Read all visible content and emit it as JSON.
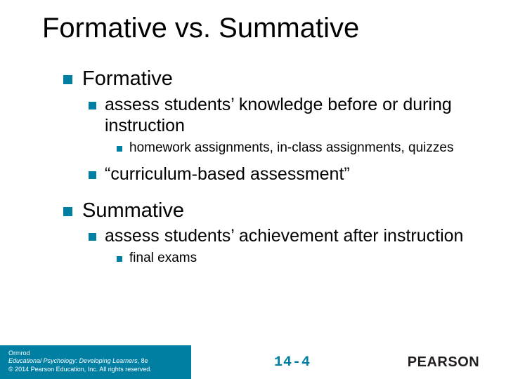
{
  "colors": {
    "bullet": "#007fa3",
    "title": "#000000",
    "text": "#000000",
    "footer_bg": "#007fa3",
    "footer_text": "#ffffff",
    "slide_number": "#007fa3",
    "brand": "#231f20",
    "background": "#ffffff"
  },
  "fonts": {
    "title_size": 40,
    "lvl1_size": 29,
    "lvl2_size": 25,
    "lvl3_size": 19,
    "footer_size": 9,
    "slidenum_size": 20
  },
  "title": "Formative vs. Summative",
  "items": {
    "a": {
      "text": "Formative"
    },
    "a1": {
      "text": "assess students’ knowledge before or during instruction"
    },
    "a1a": {
      "text": "homework assignments, in-class assignments, quizzes"
    },
    "a2": {
      "text": "“curriculum-based assessment”"
    },
    "b": {
      "text": "Summative"
    },
    "b1": {
      "text": "assess students’ achievement after instruction"
    },
    "b1a": {
      "text": "final exams"
    }
  },
  "footer": {
    "author": "Ormrod",
    "book": "Educational Psychology: Developing Learners",
    "edition": ", 8e",
    "copyright": "© 2014 Pearson Education, Inc. All rights reserved.",
    "slide_number": "14-4",
    "brand": "PEARSON"
  }
}
